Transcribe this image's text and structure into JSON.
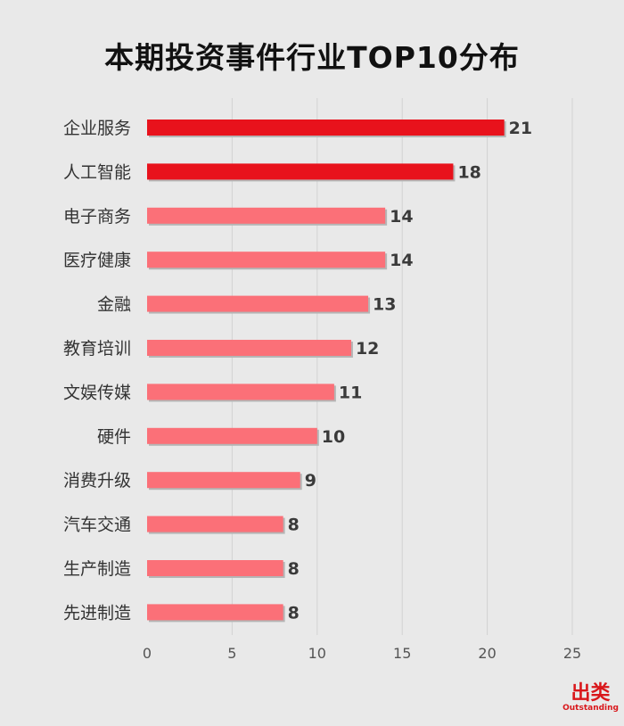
{
  "chart_data": {
    "type": "bar",
    "orientation": "horizontal",
    "title": "本期投资事件行业TOP10分布",
    "categories": [
      "企业服务",
      "人工智能",
      "电子商务",
      "医疗健康",
      "金融",
      "教育培训",
      "文娱传媒",
      "硬件",
      "消费升级",
      "汽车交通",
      "生产制造",
      "先进制造"
    ],
    "values": [
      21,
      18,
      14,
      14,
      13,
      12,
      11,
      10,
      9,
      8,
      8,
      8
    ],
    "xlim": [
      0,
      25
    ],
    "xticks": [
      0,
      5,
      10,
      15,
      20,
      25
    ],
    "grid": "vertical",
    "colors": {
      "highlight": "#e8121c",
      "normal": "#fb7078",
      "shadow": "#b5b5b5"
    },
    "highlight_count": 2
  },
  "brand": {
    "name": "出类",
    "subtitle": "Outstanding"
  }
}
